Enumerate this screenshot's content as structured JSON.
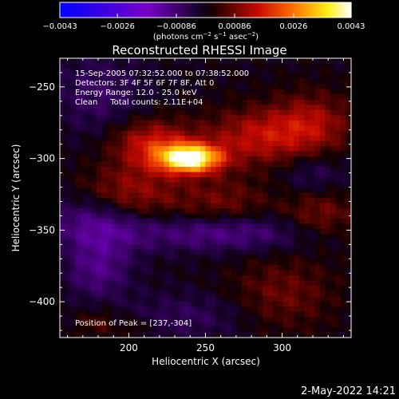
{
  "chart_data": {
    "type": "heatmap",
    "title": "Reconstructed RHESSI Image",
    "xlabel": "Heliocentric X (arcsec)",
    "ylabel": "Heliocentric Y (arcsec)",
    "xlim": [
      155,
      345
    ],
    "ylim": [
      -425,
      -230
    ],
    "x_ticks": [
      200,
      250,
      300
    ],
    "x_tick_labels": [
      "200",
      "250",
      "300"
    ],
    "y_ticks": [
      -250,
      -300,
      -350,
      -400
    ],
    "y_tick_labels": [
      "−250",
      "−300",
      "−350",
      "−400"
    ],
    "annotations": [
      "15-Sep-2005 07:32:52.000 to 07:38:52.000",
      "Detectors: 3F 4F 5F 6F 7F 8F, Att 0",
      "Energy Range: 12.0 - 25.0 keV",
      "Clean     Total counts: 2.11E+04"
    ],
    "peak_label": "Position of Peak = [237,-304]",
    "peak_position": [
      237,
      -304
    ],
    "colorbar": {
      "min": -0.0043,
      "max": 0.0043,
      "tick_values": [
        -0.0043,
        -0.0026,
        -0.00086,
        0.00086,
        0.0026,
        0.0043
      ],
      "tick_labels": [
        "−0.0043",
        "−0.0026",
        "−0.00086",
        "0.00086",
        "0.0026",
        "0.0043"
      ],
      "units_prefix": "(photons cm",
      "units_exp1": "−2",
      "units_mid1": " s",
      "units_exp2": "−1",
      "units_mid2": " asec",
      "units_exp3": "−2",
      "units_suffix": ")"
    },
    "sources": [
      {
        "x": 240,
        "y": -300,
        "amp": 0.0043,
        "sx": 14,
        "sy": 7
      },
      {
        "x": 215,
        "y": -290,
        "amp": 0.0016,
        "sx": 18,
        "sy": 12
      },
      {
        "x": 285,
        "y": -285,
        "amp": 0.0014,
        "sx": 25,
        "sy": 14
      },
      {
        "x": 320,
        "y": -275,
        "amp": 0.0011,
        "sx": 18,
        "sy": 15
      },
      {
        "x": 200,
        "y": -325,
        "amp": 0.0012,
        "sx": 22,
        "sy": 14
      },
      {
        "x": 260,
        "y": -330,
        "amp": 0.0008,
        "sx": 22,
        "sy": 12
      },
      {
        "x": 325,
        "y": -340,
        "amp": 0.0009,
        "sx": 18,
        "sy": 12
      },
      {
        "x": 300,
        "y": -395,
        "amp": 0.0008,
        "sx": 24,
        "sy": 18
      },
      {
        "x": 180,
        "y": -255,
        "amp": -0.0007,
        "sx": 22,
        "sy": 20
      },
      {
        "x": 180,
        "y": -345,
        "amp": -0.0012,
        "sx": 22,
        "sy": 14
      },
      {
        "x": 260,
        "y": -352,
        "amp": -0.0011,
        "sx": 45,
        "sy": 9
      },
      {
        "x": 180,
        "y": -378,
        "amp": -0.001,
        "sx": 15,
        "sy": 14
      },
      {
        "x": 320,
        "y": -310,
        "amp": -0.0006,
        "sx": 15,
        "sy": 10
      },
      {
        "x": 240,
        "y": -410,
        "amp": -0.0006,
        "sx": 30,
        "sy": 12
      },
      {
        "x": 180,
        "y": -415,
        "amp": 0.0006,
        "sx": 10,
        "sy": 7
      },
      {
        "x": 205,
        "y": -418,
        "amp": 0.0005,
        "sx": 6,
        "sy": 5
      }
    ]
  },
  "footer": {
    "date": "2-May-2022 14:21"
  }
}
